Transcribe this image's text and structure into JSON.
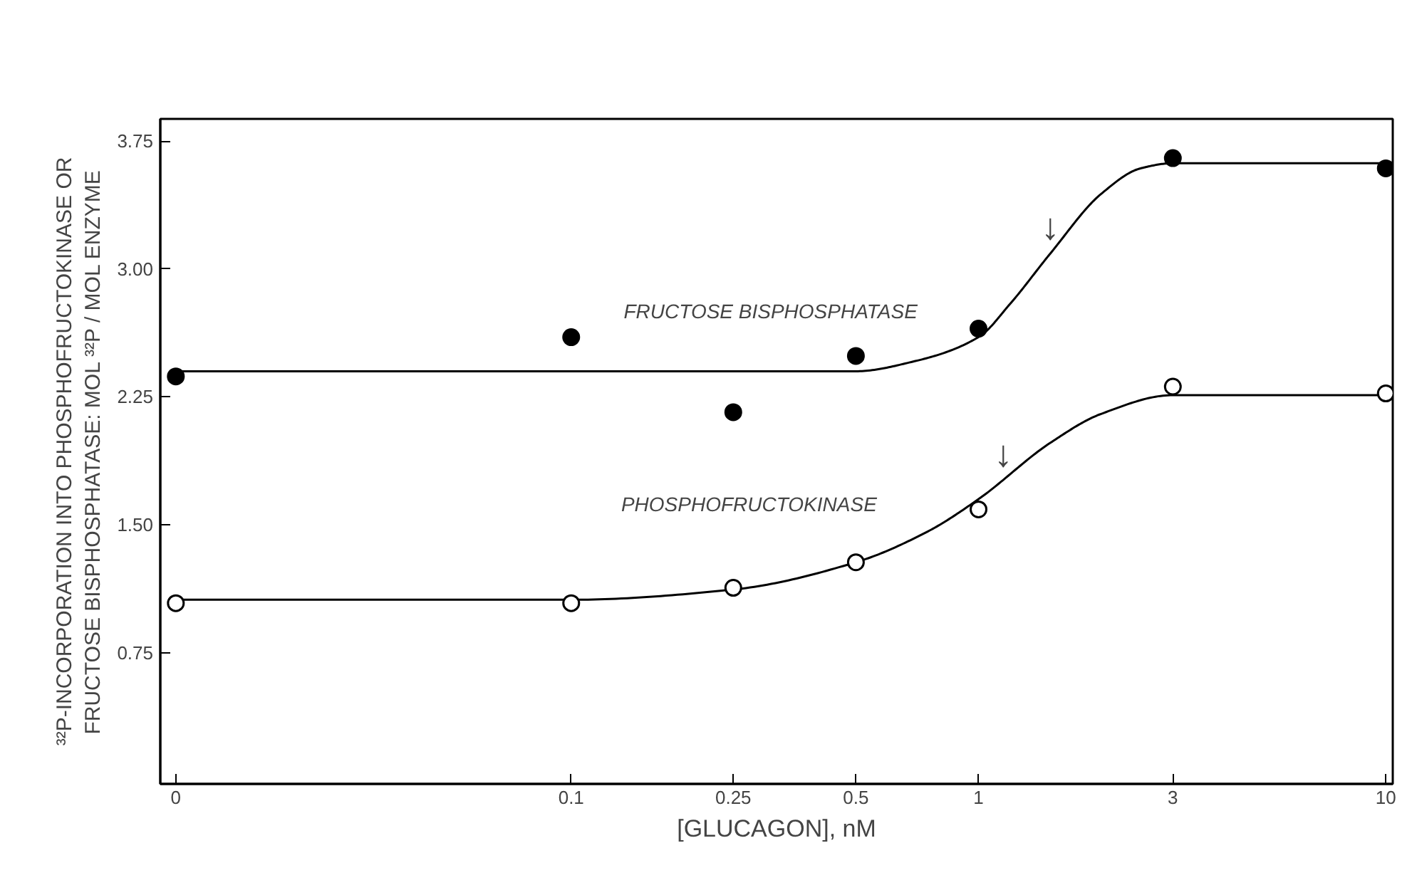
{
  "chart_data": {
    "type": "scatter",
    "xlabel": "[GLUCAGON], nM",
    "ylabel": "³²P-INCORPORATION INTO PHOSPHOFRUCTOKINASE OR\nFRUCTOSE BISPHOSPHATASE: MOL ³²P / MOL ENZYME",
    "log": "x",
    "xlim": [
      0.0098,
      10.4
    ],
    "xticks": [
      {
        "value": 0.0107,
        "label": "0"
      },
      0.1,
      0.25,
      0.5,
      1,
      3,
      10
    ],
    "ylim": [
      -0.02,
      3.88
    ],
    "yticks": [
      {
        "value": 0.75,
        "label": "0.75"
      },
      {
        "value": 1.5,
        "label": "1.50"
      },
      {
        "value": 2.25,
        "label": "2.25"
      },
      {
        "value": 3,
        "label": "3.00"
      },
      {
        "value": 3.75,
        "label": "3.75"
      }
    ],
    "grid": false,
    "marker": "circle",
    "x": [
      0.0107,
      0.1,
      0.25,
      0.5,
      1,
      3,
      10
    ],
    "series": [
      {
        "type": "line",
        "color": "#000000",
        "marker": "none",
        "x": [
          0.0107,
          0.1,
          0.5,
          0.7,
          1,
          1.2,
          1.5,
          2,
          2.5,
          3,
          10
        ],
        "values": [
          2.4,
          2.4,
          2.4,
          2.46,
          2.6,
          2.8,
          3.09,
          3.44,
          3.59,
          3.62,
          3.62
        ]
      },
      {
        "type": "line",
        "color": "#000000",
        "marker": "none",
        "x": [
          0.0107,
          0.1,
          0.25,
          0.5,
          0.75,
          1,
          1.5,
          2,
          3,
          10
        ],
        "values": [
          1.06,
          1.06,
          1.12,
          1.28,
          1.46,
          1.65,
          1.98,
          2.15,
          2.26,
          2.26
        ]
      },
      {
        "color": "#000000",
        "values": [
          2.37,
          2.6,
          2.16,
          2.49,
          2.65,
          3.65,
          3.59
        ]
      },
      {
        "color": "#ffffff",
        "values": [
          1.04,
          1.04,
          1.13,
          1.28,
          1.59,
          2.31,
          2.27
        ]
      }
    ],
    "annotations": [
      {
        "text": "FRUCTOSE BISPHOSPHATASE",
        "x": 0.78,
        "y": 2.5
      },
      {
        "text": "PHOSPHOFRUCTOKINASE",
        "x": 0.62,
        "y": 1.37
      },
      {
        "text": "↓",
        "x": 1.5,
        "y": 3.09
      },
      {
        "text": "↓",
        "x": 1.15,
        "y": 1.76
      }
    ]
  }
}
